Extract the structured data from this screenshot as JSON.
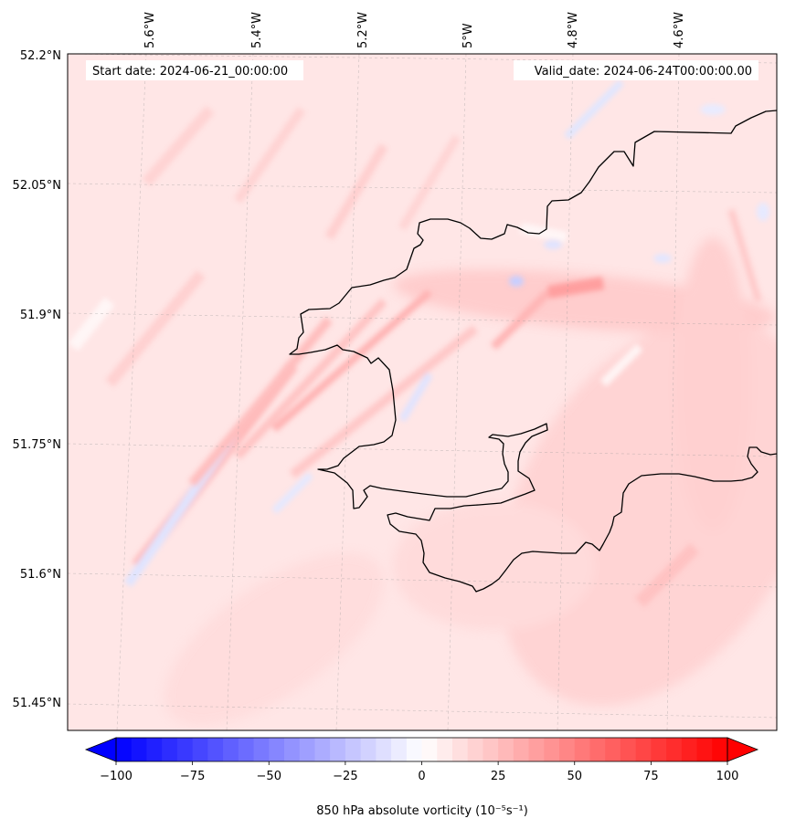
{
  "header": {
    "start_date": "Start date: 2024-06-21_00:00:00",
    "valid_date": "Valid_date: 2024-06-24T00:00:00.00"
  },
  "axes": {
    "lon_labels": [
      "5.6°W",
      "5.4°W",
      "5.2°W",
      "5°W",
      "4.8°W",
      "4.6°W"
    ],
    "lat_labels": [
      "52.2°N",
      "52.05°N",
      "51.9°N",
      "51.75°N",
      "51.6°N",
      "51.45°N"
    ],
    "gridlines": "dashed-gray"
  },
  "colorbar": {
    "min": -100,
    "max": 100,
    "levels": 40,
    "extend": "both",
    "colormap": "bwr",
    "ticks": [
      "−100",
      "−75",
      "−50",
      "−25",
      "0",
      "25",
      "50",
      "75",
      "100"
    ],
    "label": "850 hPa absolute vorticity (10⁻⁵s⁻¹)"
  },
  "colors": {
    "cold": "#0000ff",
    "neutral": "#ffffff",
    "warm": "#ff0000",
    "coastline": "#000000"
  }
}
